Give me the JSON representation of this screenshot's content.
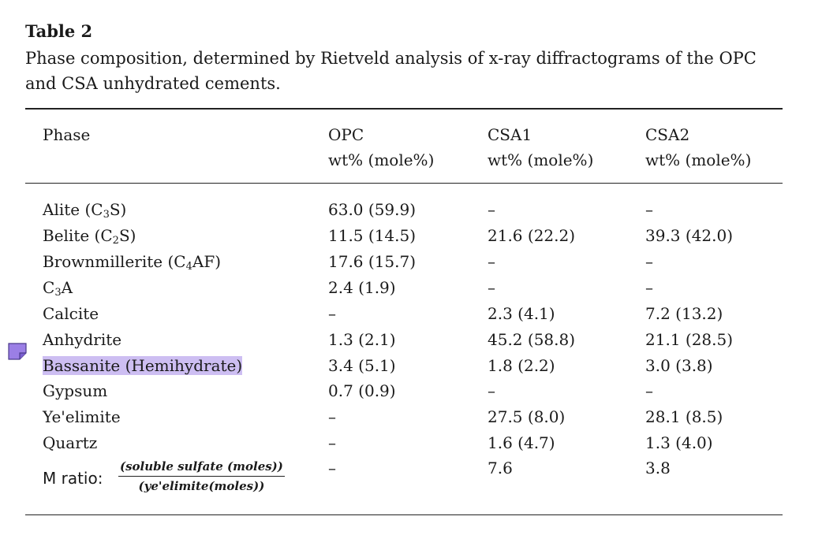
{
  "table": {
    "label": "Table 2",
    "caption_line1": "Phase composition, determined by Rietveld analysis of x-ray diffractograms of the OPC",
    "caption_line2": "and CSA unhydrated cements.",
    "headers": [
      {
        "name": "Phase",
        "unit": ""
      },
      {
        "name": "OPC",
        "unit": "wt% (mole%)"
      },
      {
        "name": "CSA1",
        "unit": "wt% (mole%)"
      },
      {
        "name": "CSA2",
        "unit": "wt% (mole%)"
      }
    ],
    "rows": [
      {
        "phase_pre": "Alite (C",
        "phase_sub1": "3",
        "phase_mid": "S)",
        "phase_sub2": "",
        "phase_post": "",
        "opc": "63.0 (59.9)",
        "csa1": "–",
        "csa2": "–"
      },
      {
        "phase_pre": "Belite (C",
        "phase_sub1": "2",
        "phase_mid": "S)",
        "phase_sub2": "",
        "phase_post": "",
        "opc": "11.5 (14.5)",
        "csa1": "21.6 (22.2)",
        "csa2": "39.3 (42.0)"
      },
      {
        "phase_pre": "Brownmillerite (C",
        "phase_sub1": "4",
        "phase_mid": "AF)",
        "phase_sub2": "",
        "phase_post": "",
        "opc": "17.6 (15.7)",
        "csa1": "–",
        "csa2": "–"
      },
      {
        "phase_pre": "C",
        "phase_sub1": "3",
        "phase_mid": "A",
        "phase_sub2": "",
        "phase_post": "",
        "opc": "2.4 (1.9)",
        "csa1": "–",
        "csa2": "–"
      },
      {
        "phase_pre": "Calcite",
        "phase_sub1": "",
        "phase_mid": "",
        "phase_sub2": "",
        "phase_post": "",
        "opc": "–",
        "csa1": "2.3 (4.1)",
        "csa2": "7.2 (13.2)"
      },
      {
        "phase_pre": "Anhydrite",
        "phase_sub1": "",
        "phase_mid": "",
        "phase_sub2": "",
        "phase_post": "",
        "opc": "1.3 (2.1)",
        "csa1": "45.2 (58.8)",
        "csa2": "21.1 (28.5)"
      },
      {
        "phase_pre": "Bassanite (Hemihydrate)",
        "phase_sub1": "",
        "phase_mid": "",
        "phase_sub2": "",
        "phase_post": "",
        "opc": "3.4 (5.1)",
        "csa1": "1.8 (2.2)",
        "csa2": "3.0 (3.8)"
      },
      {
        "phase_pre": "Gypsum",
        "phase_sub1": "",
        "phase_mid": "",
        "phase_sub2": "",
        "phase_post": "",
        "opc": "0.7 (0.9)",
        "csa1": "–",
        "csa2": "–"
      },
      {
        "phase_pre": "Ye'elimite",
        "phase_sub1": "",
        "phase_mid": "",
        "phase_sub2": "",
        "phase_post": "",
        "opc": "–",
        "csa1": "27.5 (8.0)",
        "csa2": "28.1 (8.5)"
      },
      {
        "phase_pre": "Quartz",
        "phase_sub1": "",
        "phase_mid": "",
        "phase_sub2": "",
        "phase_post": "",
        "opc": "–",
        "csa1": "1.6 (4.7)",
        "csa2": "1.3 (4.0)"
      }
    ],
    "m_ratio": {
      "label": "M ratio:",
      "numerator": "(soluble sulfate (moles))",
      "denominator": "(ye'elimite(moles))",
      "opc": "–",
      "csa1": "7.6",
      "csa2": "3.8"
    }
  },
  "annotation": {
    "highlight_color": "#cdbef2",
    "icon": "sticky-note-icon",
    "icon_color": "#9b7fe6"
  }
}
